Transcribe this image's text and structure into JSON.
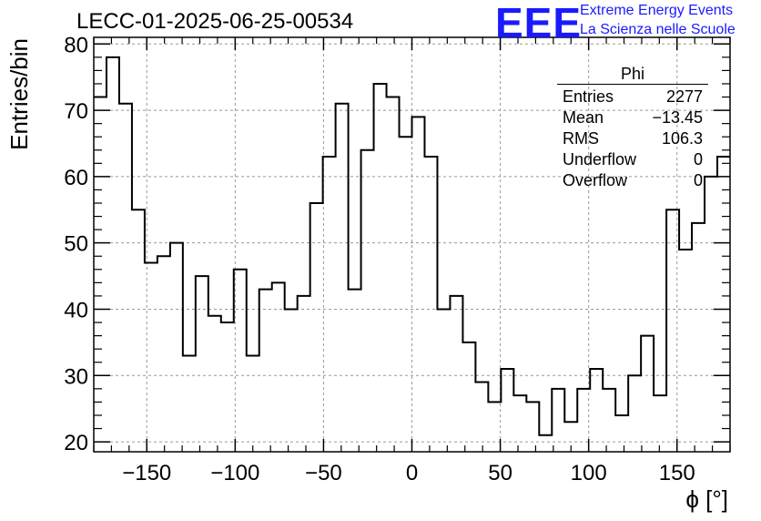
{
  "title": "LECC-01-2025-06-25-00534",
  "logo": {
    "text": "EEE",
    "line1": "Extreme Energy Events",
    "line2": "La Scienza nelle Scuole",
    "color": "#1a1aff"
  },
  "stats_box": {
    "title": "Phi",
    "rows": [
      {
        "label": "Entries",
        "value": "2277"
      },
      {
        "label": "Mean",
        "value": "−13.45"
      },
      {
        "label": "RMS",
        "value": "106.3"
      },
      {
        "label": "Underflow",
        "value": "0"
      },
      {
        "label": "Overflow",
        "value": "0"
      }
    ]
  },
  "chart_data": {
    "type": "bar",
    "style": "step-histogram",
    "xlabel": "ϕ [°]",
    "ylabel": "Entries/bin",
    "xlim": [
      -180,
      180
    ],
    "ylim": [
      18.5,
      81
    ],
    "grid": true,
    "x_ticks": [
      -150,
      -100,
      -50,
      0,
      50,
      100,
      150
    ],
    "x_tick_labels": [
      "−150",
      "−100",
      "−50",
      "0",
      "50",
      "100",
      "150"
    ],
    "y_ticks": [
      20,
      30,
      40,
      50,
      60,
      70,
      80
    ],
    "bin_width": 7.2,
    "values": [
      72,
      78,
      71,
      55,
      47,
      48,
      50,
      33,
      45,
      39,
      38,
      46,
      33,
      43,
      44,
      40,
      42,
      56,
      63,
      71,
      43,
      64,
      74,
      72,
      66,
      69,
      63,
      40,
      42,
      35,
      29,
      26,
      31,
      27,
      26,
      21,
      28,
      23,
      28,
      31,
      28,
      24,
      30,
      36,
      27,
      55,
      49,
      53,
      60,
      63
    ]
  }
}
